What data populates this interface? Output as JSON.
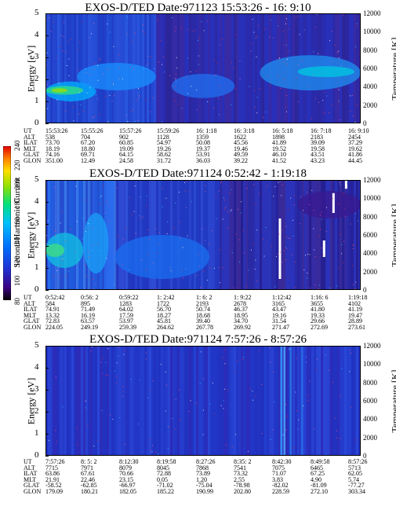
{
  "panels": [
    {
      "title": "EXOS-D/TED   Date:971123  15:53:26 - 16: 9:10",
      "ylabel": "Energy [eV]",
      "y2label": "Temperature [K]",
      "yticks": [
        "0",
        "1",
        "2",
        "3",
        "4",
        "5"
      ],
      "y2ticks": [
        "0",
        "2000",
        "4000",
        "6000",
        "8000",
        "10000",
        "12000"
      ],
      "eph_labels": [
        "UT",
        "ALT",
        "ILAT",
        "MLT",
        "GLAT",
        "GLON"
      ],
      "eph": [
        [
          "15:53:26",
          "15:55:26",
          "15:57:26",
          "15:59:26",
          "16: 1:18",
          "16: 3:18",
          "16: 5:18",
          "16: 7:18",
          "16: 9:10"
        ],
        [
          "538",
          "704",
          "902",
          "1128",
          "1359",
          "1622",
          "1898",
          "2183",
          "2454"
        ],
        [
          "73.70",
          "67.20",
          "60.85",
          "54.97",
          "50.08",
          "45.56",
          "41.89",
          "39.09",
          "37.29"
        ],
        [
          "18.19",
          "18.80",
          "19.09",
          "19.26",
          "19.37",
          "19.46",
          "19.52",
          "19.58",
          "19.62"
        ],
        [
          "74.16",
          "69.71",
          "64.15",
          "58.62",
          "53.91",
          "49.59",
          "46.10",
          "43.51",
          "41.86"
        ],
        [
          "351.00",
          "12.49",
          "24.58",
          "31.72",
          "36.03",
          "39.22",
          "41.52",
          "43.23",
          "44.45"
        ]
      ]
    },
    {
      "title": "EXOS-D/TED   Date:971124   0:52:42 -  1:19:18",
      "ylabel": "Energy [eV]",
      "y2label": "Temperature [K]",
      "yticks": [
        "0",
        "1",
        "2",
        "3",
        "4",
        "5"
      ],
      "y2ticks": [
        "0",
        "2000",
        "4000",
        "6000",
        "8000",
        "10000",
        "12000"
      ],
      "eph_labels": [
        "UT",
        "ALT",
        "ILAT",
        "MLT",
        "GLAT",
        "GLON"
      ],
      "eph": [
        [
          "0:52:42",
          "0:56: 2",
          "0:59:22",
          "1: 2:42",
          "1: 6: 2",
          "1: 9:22",
          "1:12:42",
          "1:16: 6",
          "1:19:18"
        ],
        [
          "584",
          "895",
          "1283",
          "1722",
          "2193",
          "2678",
          "3165",
          "3655",
          "4102"
        ],
        [
          "74.91",
          "71.49",
          "64.02",
          "56.70",
          "50.74",
          "46.37",
          "43.47",
          "41.80",
          "41.19"
        ],
        [
          "13.32",
          "16.19",
          "17.59",
          "18.27",
          "18.68",
          "18.95",
          "19.16",
          "19.33",
          "19.47"
        ],
        [
          "72.83",
          "63.57",
          "53.97",
          "45.81",
          "39.40",
          "34.70",
          "31.54",
          "29.66",
          "28.89"
        ],
        [
          "224.05",
          "249.19",
          "259.39",
          "264.62",
          "267.78",
          "269.92",
          "271.47",
          "272.69",
          "273.61"
        ]
      ]
    },
    {
      "title": "EXOS-D/TED   Date:971124   7:57:26 -  8:57:26",
      "ylabel": "Energy [eV]",
      "y2label": "Temperature [K]",
      "yticks": [
        "0",
        "1",
        "2",
        "3",
        "4",
        "5"
      ],
      "y2ticks": [
        "0",
        "2000",
        "4000",
        "6000",
        "8000",
        "10000",
        "12000"
      ],
      "eph_labels": [
        "UT",
        "ALT",
        "ILAT",
        "MLT",
        "GLAT",
        "GLON"
      ],
      "eph": [
        [
          "7:57:26",
          "8: 5: 2",
          "8:12:30",
          "8:19:58",
          "8:27:26",
          "8:35: 2",
          "8:42:30",
          "8:49:58",
          "8:57:26"
        ],
        [
          "7715",
          "7971",
          "8079",
          "8045",
          "7868",
          "7541",
          "7075",
          "6465",
          "5713"
        ],
        [
          "63.86",
          "67.61",
          "70.66",
          "72.88",
          "73.89",
          "73.32",
          "71.07",
          "67.25",
          "62.05"
        ],
        [
          "21.91",
          "22.46",
          "23.15",
          "0.05",
          "1.20",
          "2.55",
          "3.83",
          "4.90",
          "5.74"
        ],
        [
          "-58.52",
          "-62.85",
          "-66.97",
          "-71.02",
          "-75.04",
          "-78.98",
          "-82.02",
          "-81.09",
          "-77.27"
        ],
        [
          "179.09",
          "180.21",
          "182.05",
          "185.22",
          "190.99",
          "202.80",
          "228.59",
          "272.10",
          "303.34"
        ]
      ]
    }
  ],
  "colorbar": {
    "label": "Second Harmonic Current",
    "ticks": [
      "80",
      "100",
      "120",
      "140",
      "160",
      "180",
      "200",
      "220",
      "240"
    ],
    "colors": [
      "#000000",
      "#3a0080",
      "#2030d0",
      "#0070ff",
      "#00c0ff",
      "#00e080",
      "#90e000",
      "#ffe000",
      "#ff8000",
      "#e00000"
    ]
  },
  "chart_data": [
    {
      "type": "heatmap",
      "title": "EXOS-D/TED   Date:971123  15:53:26 - 16: 9:10",
      "ylabel": "Energy [eV]",
      "y2label": "Temperature [K]",
      "ylim": [
        0,
        5
      ],
      "y2lim": [
        0,
        12000
      ],
      "x": [
        "15:53:26",
        "15:55:26",
        "15:57:26",
        "15:59:26",
        "16: 1:18",
        "16: 3:18",
        "16: 5:18",
        "16: 7:18",
        "16: 9:10"
      ],
      "colorbar_label": "Second Harmonic Current",
      "colorbar_range": [
        80,
        240
      ],
      "notes": "enhanced values (cyan/green) at 1-2 eV during early UT, background ~120"
    },
    {
      "type": "heatmap",
      "title": "EXOS-D/TED   Date:971124   0:52:42 -  1:19:18",
      "ylabel": "Energy [eV]",
      "y2label": "Temperature [K]",
      "ylim": [
        0,
        5
      ],
      "y2lim": [
        0,
        12000
      ],
      "x": [
        "0:52:42",
        "0:56: 2",
        "0:59:22",
        "1: 2:42",
        "1: 6: 2",
        "1: 9:22",
        "1:12:42",
        "1:16: 6",
        "1:19:18"
      ],
      "colorbar_label": "Second Harmonic Current",
      "colorbar_range": [
        80,
        240
      ]
    },
    {
      "type": "heatmap",
      "title": "EXOS-D/TED   Date:971124   7:57:26 -  8:57:26",
      "ylabel": "Energy [eV]",
      "y2label": "Temperature [K]",
      "ylim": [
        0,
        5
      ],
      "y2lim": [
        0,
        12000
      ],
      "x": [
        "7:57:26",
        "8: 5: 2",
        "8:12:30",
        "8:19:58",
        "8:27:26",
        "8:35: 2",
        "8:42:30",
        "8:49:58",
        "8:57:26"
      ],
      "colorbar_label": "Second Harmonic Current",
      "colorbar_range": [
        80,
        240
      ]
    }
  ]
}
